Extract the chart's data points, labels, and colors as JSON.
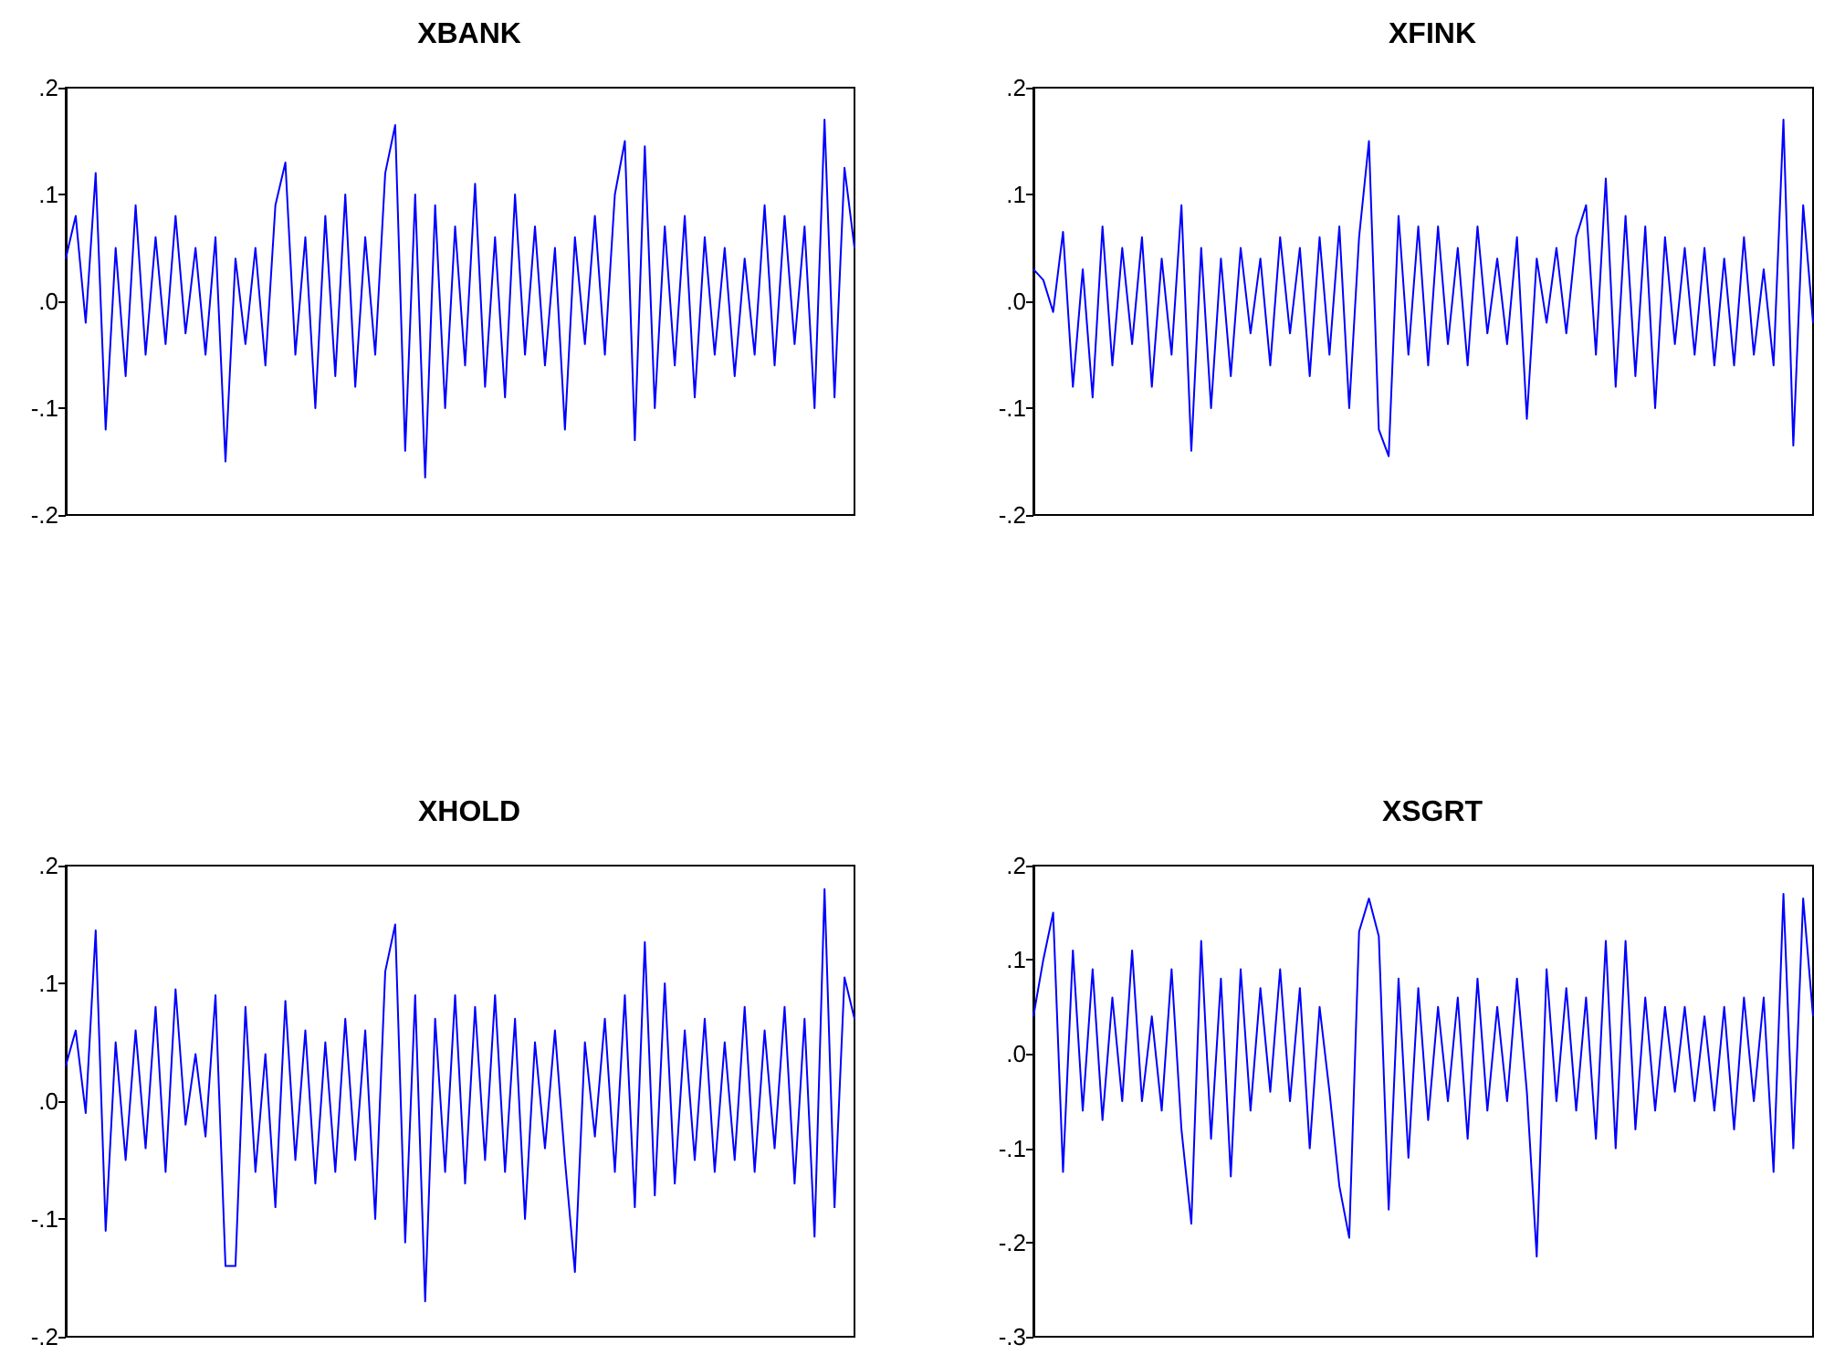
{
  "chart_data": [
    {
      "type": "line",
      "title": "XBANK",
      "tick_labels": "y",
      "grid": false,
      "ylim": [
        -0.2,
        0.2
      ],
      "yticks": [
        {
          "value": -0.2,
          "label": "-.2"
        },
        {
          "value": -0.1,
          "label": "-.1"
        },
        {
          "value": 0,
          "label": ".0"
        },
        {
          "value": 0.1,
          "label": ".1"
        },
        {
          "value": 0.2,
          "label": ".2"
        }
      ],
      "categories": [
        null,
        null,
        null,
        null,
        null,
        null,
        null,
        null,
        null,
        null,
        null,
        null,
        null,
        null,
        null,
        null,
        null,
        null,
        null,
        null,
        null,
        null,
        null,
        null,
        null,
        null,
        null,
        null,
        null,
        null,
        null,
        null,
        null,
        null,
        null,
        null,
        null,
        null,
        null,
        null,
        null,
        null,
        null,
        null,
        null,
        null,
        null,
        null,
        null,
        null,
        null,
        null,
        null,
        null,
        null,
        null,
        null,
        null,
        null,
        null,
        null,
        null,
        null,
        null,
        null,
        null,
        null,
        null,
        null,
        null,
        null,
        null,
        null,
        null,
        null,
        null,
        null,
        null,
        null,
        null
      ],
      "series": [
        {
          "color": "#0000ff",
          "values": [
            0.04,
            0.08,
            -0.02,
            0.12,
            -0.12,
            0.05,
            -0.07,
            0.09,
            -0.05,
            0.06,
            -0.04,
            0.08,
            -0.03,
            0.05,
            -0.05,
            0.06,
            -0.15,
            0.04,
            -0.04,
            0.05,
            -0.06,
            0.09,
            0.13,
            -0.05,
            0.06,
            -0.1,
            0.08,
            -0.07,
            0.1,
            -0.08,
            0.06,
            -0.05,
            0.12,
            0.165,
            -0.14,
            0.1,
            -0.165,
            0.09,
            -0.1,
            0.07,
            -0.06,
            0.11,
            -0.08,
            0.06,
            -0.09,
            0.1,
            -0.05,
            0.07,
            -0.06,
            0.05,
            -0.12,
            0.06,
            -0.04,
            0.08,
            -0.05,
            0.1,
            0.15,
            -0.13,
            0.145,
            -0.1,
            0.07,
            -0.06,
            0.08,
            -0.09,
            0.06,
            -0.05,
            0.05,
            -0.07,
            0.04,
            -0.05,
            0.09,
            -0.06,
            0.08,
            -0.04,
            0.07,
            -0.1,
            0.17,
            -0.09,
            0.125,
            0.05
          ]
        }
      ]
    },
    {
      "type": "line",
      "title": "XFINK",
      "tick_labels": "y",
      "grid": false,
      "ylim": [
        -0.2,
        0.2
      ],
      "yticks": [
        {
          "value": -0.2,
          "label": "-.2"
        },
        {
          "value": -0.1,
          "label": "-.1"
        },
        {
          "value": 0,
          "label": ".0"
        },
        {
          "value": 0.1,
          "label": ".1"
        },
        {
          "value": 0.2,
          "label": ".2"
        }
      ],
      "categories": [
        null,
        null,
        null,
        null,
        null,
        null,
        null,
        null,
        null,
        null,
        null,
        null,
        null,
        null,
        null,
        null,
        null,
        null,
        null,
        null,
        null,
        null,
        null,
        null,
        null,
        null,
        null,
        null,
        null,
        null,
        null,
        null,
        null,
        null,
        null,
        null,
        null,
        null,
        null,
        null,
        null,
        null,
        null,
        null,
        null,
        null,
        null,
        null,
        null,
        null,
        null,
        null,
        null,
        null,
        null,
        null,
        null,
        null,
        null,
        null,
        null,
        null,
        null,
        null,
        null,
        null,
        null,
        null,
        null,
        null,
        null,
        null,
        null,
        null,
        null,
        null,
        null,
        null,
        null,
        null
      ],
      "series": [
        {
          "color": "#0000ff",
          "values": [
            0.03,
            0.02,
            -0.01,
            0.065,
            -0.08,
            0.03,
            -0.09,
            0.07,
            -0.06,
            0.05,
            -0.04,
            0.06,
            -0.08,
            0.04,
            -0.05,
            0.09,
            -0.14,
            0.05,
            -0.1,
            0.04,
            -0.07,
            0.05,
            -0.03,
            0.04,
            -0.06,
            0.06,
            -0.03,
            0.05,
            -0.07,
            0.06,
            -0.05,
            0.07,
            -0.1,
            0.06,
            0.15,
            -0.12,
            -0.145,
            0.08,
            -0.05,
            0.07,
            -0.06,
            0.07,
            -0.04,
            0.05,
            -0.06,
            0.07,
            -0.03,
            0.04,
            -0.04,
            0.06,
            -0.11,
            0.04,
            -0.02,
            0.05,
            -0.03,
            0.06,
            0.09,
            -0.05,
            0.115,
            -0.08,
            0.08,
            -0.07,
            0.07,
            -0.1,
            0.06,
            -0.04,
            0.05,
            -0.05,
            0.05,
            -0.06,
            0.04,
            -0.06,
            0.06,
            -0.05,
            0.03,
            -0.06,
            0.17,
            -0.135,
            0.09,
            -0.02
          ]
        }
      ]
    },
    {
      "type": "line",
      "title": "XHOLD",
      "tick_labels": "y",
      "grid": false,
      "ylim": [
        -0.2,
        0.2
      ],
      "yticks": [
        {
          "value": -0.2,
          "label": "-.2"
        },
        {
          "value": -0.1,
          "label": "-.1"
        },
        {
          "value": 0,
          "label": ".0"
        },
        {
          "value": 0.1,
          "label": ".1"
        },
        {
          "value": 0.2,
          "label": ".2"
        }
      ],
      "categories": [
        null,
        null,
        null,
        null,
        null,
        null,
        null,
        null,
        null,
        null,
        null,
        null,
        null,
        null,
        null,
        null,
        null,
        null,
        null,
        null,
        null,
        null,
        null,
        null,
        null,
        null,
        null,
        null,
        null,
        null,
        null,
        null,
        null,
        null,
        null,
        null,
        null,
        null,
        null,
        null,
        null,
        null,
        null,
        null,
        null,
        null,
        null,
        null,
        null,
        null,
        null,
        null,
        null,
        null,
        null,
        null,
        null,
        null,
        null,
        null,
        null,
        null,
        null,
        null,
        null,
        null,
        null,
        null,
        null,
        null,
        null,
        null,
        null,
        null,
        null,
        null,
        null,
        null,
        null,
        null
      ],
      "series": [
        {
          "color": "#0000ff",
          "values": [
            0.03,
            0.06,
            -0.01,
            0.145,
            -0.11,
            0.05,
            -0.05,
            0.06,
            -0.04,
            0.08,
            -0.06,
            0.095,
            -0.02,
            0.04,
            -0.03,
            0.09,
            -0.14,
            -0.14,
            0.08,
            -0.06,
            0.04,
            -0.09,
            0.085,
            -0.05,
            0.06,
            -0.07,
            0.05,
            -0.06,
            0.07,
            -0.05,
            0.06,
            -0.1,
            0.11,
            0.15,
            -0.12,
            0.09,
            -0.17,
            0.07,
            -0.06,
            0.09,
            -0.07,
            0.08,
            -0.05,
            0.09,
            -0.06,
            0.07,
            -0.1,
            0.05,
            -0.04,
            0.06,
            -0.05,
            -0.145,
            0.05,
            -0.03,
            0.07,
            -0.06,
            0.09,
            -0.09,
            0.135,
            -0.08,
            0.1,
            -0.07,
            0.06,
            -0.05,
            0.07,
            -0.06,
            0.05,
            -0.05,
            0.08,
            -0.06,
            0.06,
            -0.04,
            0.08,
            -0.07,
            0.07,
            -0.115,
            0.18,
            -0.09,
            0.105,
            0.07
          ]
        }
      ]
    },
    {
      "type": "line",
      "title": "XSGRT",
      "tick_labels": "y",
      "grid": false,
      "ylim": [
        -0.3,
        0.2
      ],
      "yticks": [
        {
          "value": -0.3,
          "label": "-.3"
        },
        {
          "value": -0.2,
          "label": "-.2"
        },
        {
          "value": -0.1,
          "label": "-.1"
        },
        {
          "value": 0,
          "label": ".0"
        },
        {
          "value": 0.1,
          "label": ".1"
        },
        {
          "value": 0.2,
          "label": ".2"
        }
      ],
      "categories": [
        null,
        null,
        null,
        null,
        null,
        null,
        null,
        null,
        null,
        null,
        null,
        null,
        null,
        null,
        null,
        null,
        null,
        null,
        null,
        null,
        null,
        null,
        null,
        null,
        null,
        null,
        null,
        null,
        null,
        null,
        null,
        null,
        null,
        null,
        null,
        null,
        null,
        null,
        null,
        null,
        null,
        null,
        null,
        null,
        null,
        null,
        null,
        null,
        null,
        null,
        null,
        null,
        null,
        null,
        null,
        null,
        null,
        null,
        null,
        null,
        null,
        null,
        null,
        null,
        null,
        null,
        null,
        null,
        null,
        null,
        null,
        null,
        null,
        null,
        null,
        null,
        null,
        null,
        null,
        null
      ],
      "series": [
        {
          "color": "#0000ff",
          "values": [
            0.04,
            0.1,
            0.15,
            -0.125,
            0.11,
            -0.06,
            0.09,
            -0.07,
            0.06,
            -0.05,
            0.11,
            -0.05,
            0.04,
            -0.06,
            0.09,
            -0.08,
            -0.18,
            0.12,
            -0.09,
            0.08,
            -0.13,
            0.09,
            -0.06,
            0.07,
            -0.04,
            0.09,
            -0.05,
            0.07,
            -0.1,
            0.05,
            -0.04,
            -0.14,
            -0.195,
            0.13,
            0.165,
            0.125,
            -0.165,
            0.08,
            -0.11,
            0.07,
            -0.07,
            0.05,
            -0.05,
            0.06,
            -0.09,
            0.08,
            -0.06,
            0.05,
            -0.05,
            0.08,
            -0.04,
            -0.215,
            0.09,
            -0.05,
            0.07,
            -0.06,
            0.06,
            -0.09,
            0.12,
            -0.1,
            0.12,
            -0.08,
            0.06,
            -0.06,
            0.05,
            -0.04,
            0.05,
            -0.05,
            0.04,
            -0.06,
            0.05,
            -0.08,
            0.06,
            -0.05,
            0.06,
            -0.125,
            0.17,
            -0.1,
            0.165,
            0.04
          ]
        }
      ]
    }
  ]
}
